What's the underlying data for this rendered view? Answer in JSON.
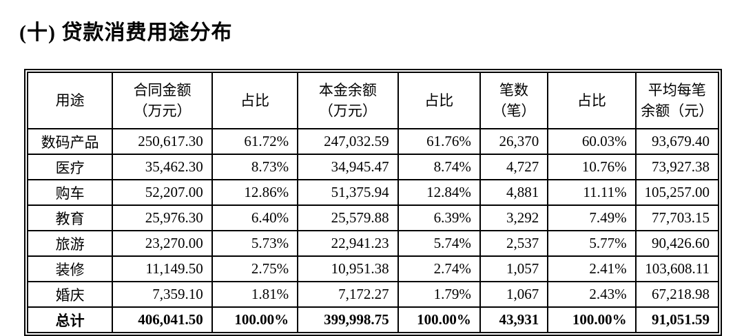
{
  "page": {
    "title": "(十) 贷款消费用途分布"
  },
  "table": {
    "columns": [
      {
        "label": "用途",
        "width": "12.3%"
      },
      {
        "label": "合同金额\n（万元）",
        "width": "14.4%"
      },
      {
        "label": "占比",
        "width": "12.4%"
      },
      {
        "label": "本金余额\n（万元）",
        "width": "14.5%"
      },
      {
        "label": "占比",
        "width": "11.9%"
      },
      {
        "label": "笔数\n（笔）",
        "width": "9.8%"
      },
      {
        "label": "占比",
        "width": "12.7%"
      },
      {
        "label": "平均每笔\n余额（元）",
        "width": "12.0%"
      }
    ],
    "rows": [
      [
        "数码产品",
        "250,617.30",
        "61.72%",
        "247,032.59",
        "61.76%",
        "26,370",
        "60.03%",
        "93,679.40"
      ],
      [
        "医疗",
        "35,462.30",
        "8.73%",
        "34,945.47",
        "8.74%",
        "4,727",
        "10.76%",
        "73,927.38"
      ],
      [
        "购车",
        "52,207.00",
        "12.86%",
        "51,375.94",
        "12.84%",
        "4,881",
        "11.11%",
        "105,257.00"
      ],
      [
        "教育",
        "25,976.30",
        "6.40%",
        "25,579.88",
        "6.39%",
        "3,292",
        "7.49%",
        "77,703.15"
      ],
      [
        "旅游",
        "23,270.00",
        "5.73%",
        "22,941.23",
        "5.74%",
        "2,537",
        "5.77%",
        "90,426.60"
      ],
      [
        "装修",
        "11,149.50",
        "2.75%",
        "10,951.38",
        "2.74%",
        "1,057",
        "2.41%",
        "103,608.11"
      ],
      [
        "婚庆",
        "7,359.10",
        "1.81%",
        "7,172.27",
        "1.79%",
        "1,067",
        "2.43%",
        "67,218.98"
      ]
    ],
    "total_row": [
      "总计",
      "406,041.50",
      "100.00%",
      "399,998.75",
      "100.00%",
      "43,931",
      "100.00%",
      "91,051.59"
    ]
  },
  "colors": {
    "text": "#000000",
    "border": "#000000",
    "background": "#ffffff"
  }
}
